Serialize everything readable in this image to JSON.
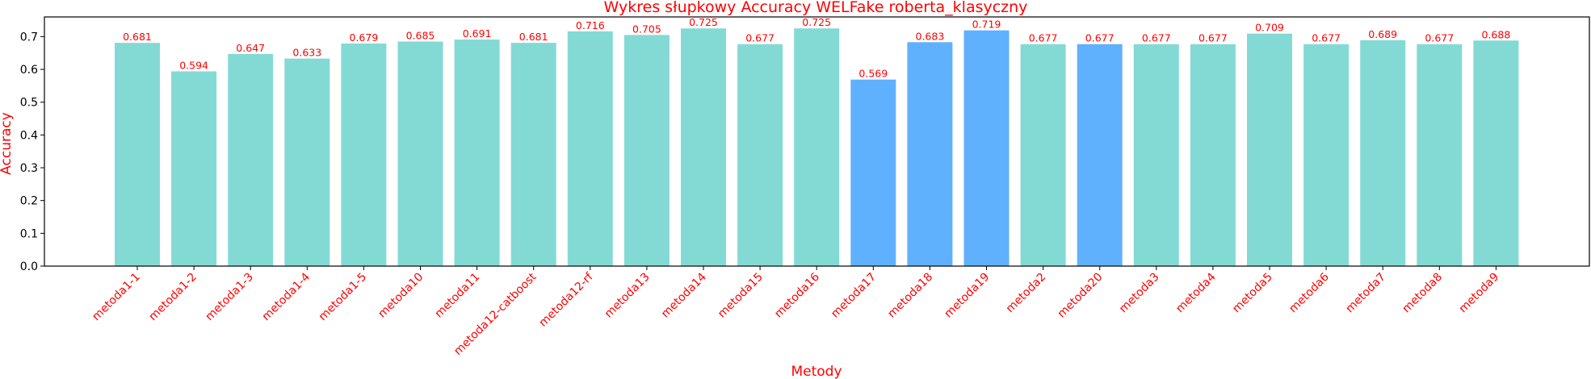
{
  "colors": {
    "text_accent": "#ff0000",
    "bar_default": "#83dad5",
    "bar_highlight": "#60b1fd",
    "axis": "#000000"
  },
  "chart_data": {
    "type": "bar",
    "title": "Wykres słupkowy Accuracy WELFake roberta_klasyczny",
    "xlabel": "Metody",
    "ylabel": "Accuracy",
    "ylim": [
      0,
      0.76
    ],
    "yticks": [
      0.0,
      0.1,
      0.2,
      0.3,
      0.4,
      0.5,
      0.6,
      0.7
    ],
    "grid": false,
    "categories": [
      "metoda1-1",
      "metoda1-2",
      "metoda1-3",
      "metoda1-4",
      "metoda1-5",
      "metoda10",
      "metoda11",
      "metoda12-catboost",
      "metoda12-rf",
      "metoda13",
      "metoda14",
      "metoda15",
      "metoda16",
      "metoda17",
      "metoda18",
      "metoda19",
      "metoda2",
      "metoda20",
      "metoda3",
      "metoda4",
      "metoda5",
      "metoda6",
      "metoda7",
      "metoda8",
      "metoda9"
    ],
    "values": [
      0.681,
      0.594,
      0.647,
      0.633,
      0.679,
      0.685,
      0.691,
      0.681,
      0.716,
      0.705,
      0.725,
      0.677,
      0.725,
      0.569,
      0.683,
      0.719,
      0.677,
      0.677,
      0.677,
      0.677,
      0.709,
      0.677,
      0.689,
      0.677,
      0.688
    ],
    "highlighted": [
      "metoda17",
      "metoda18",
      "metoda19",
      "metoda20"
    ]
  }
}
